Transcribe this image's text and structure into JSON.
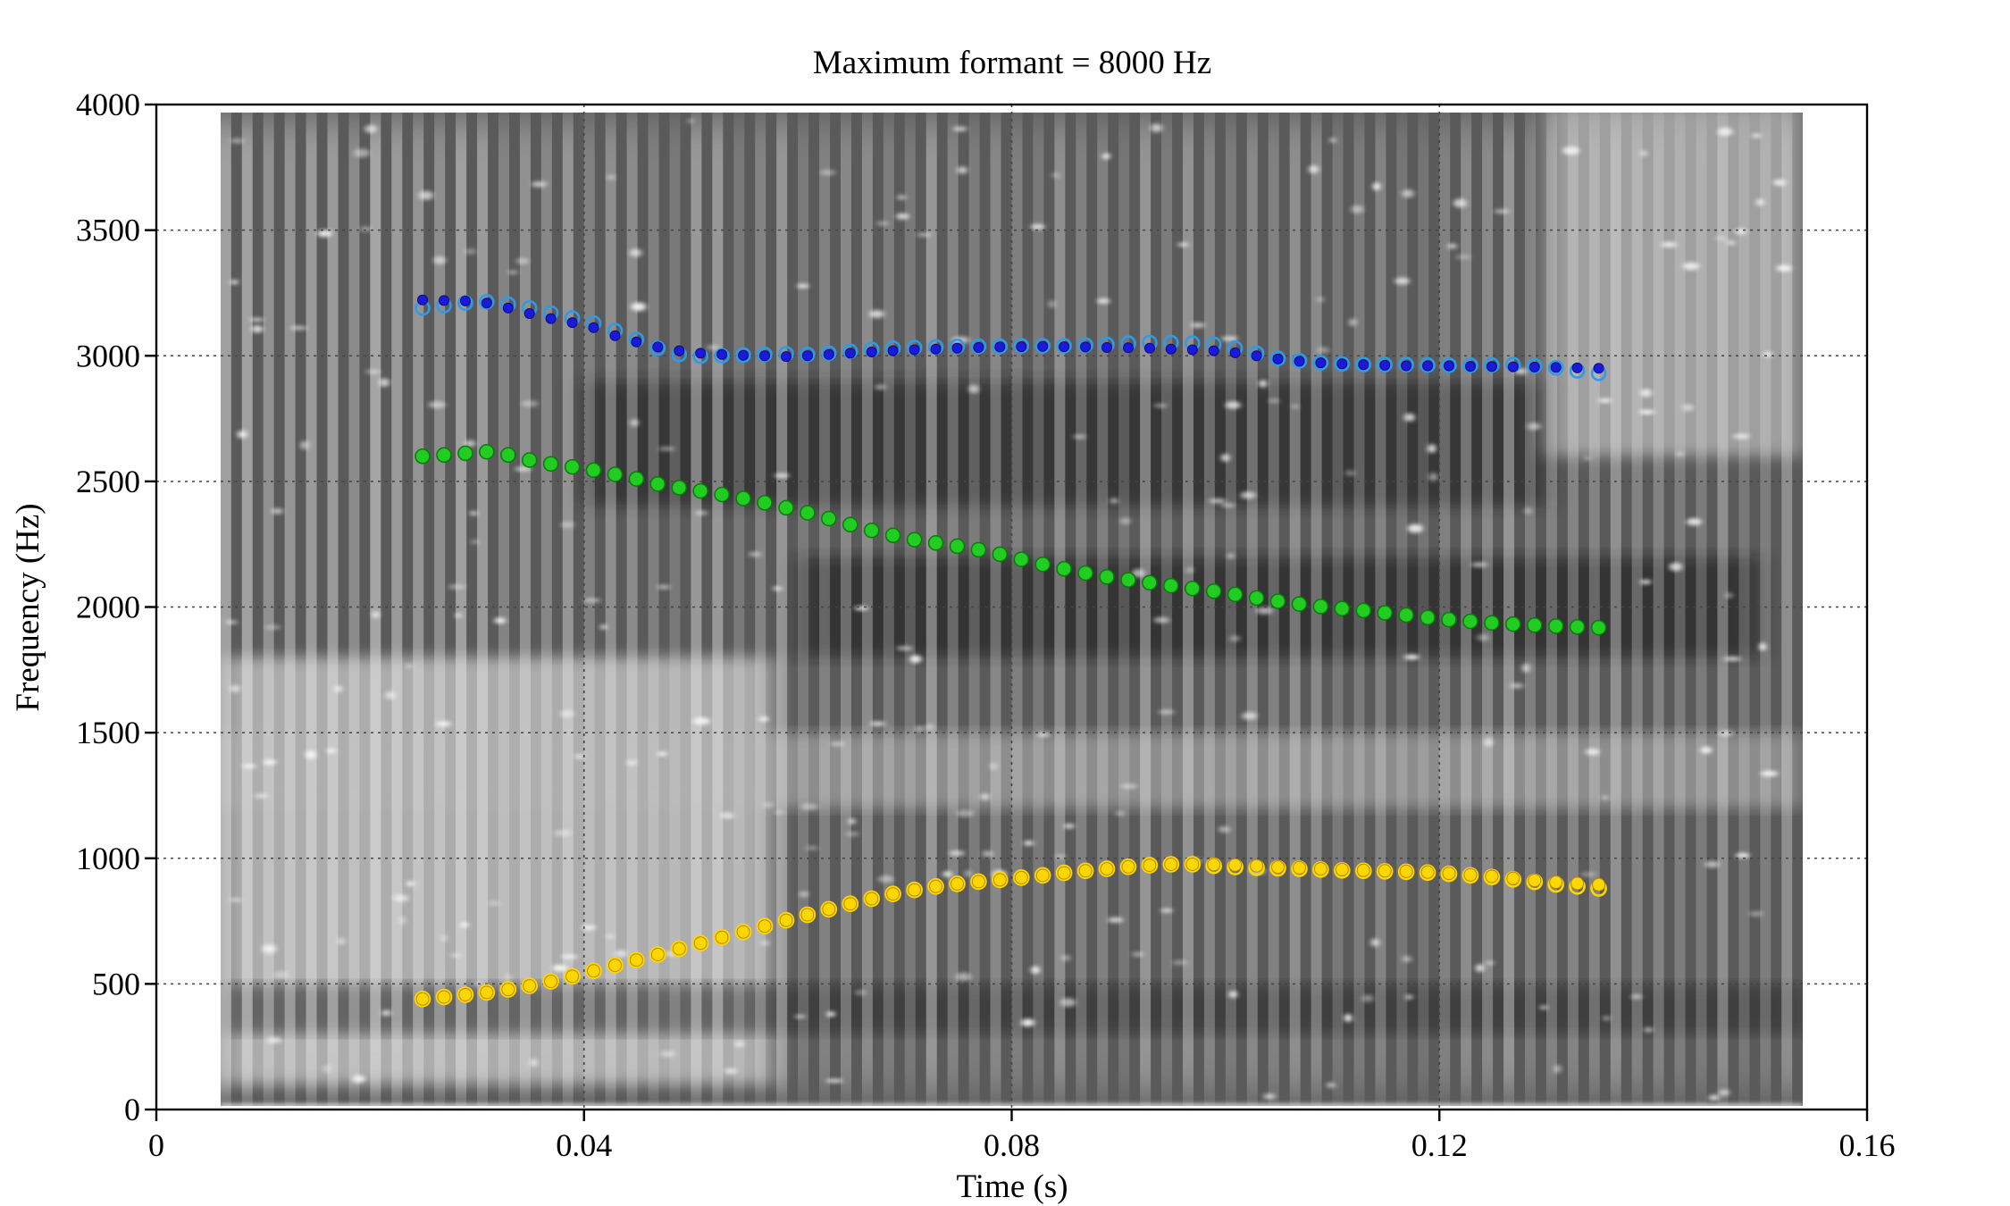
{
  "chart_data": {
    "type": "scatter",
    "title": "Maximum formant  =  8000 Hz",
    "xlabel": "Time (s)",
    "ylabel": "Frequency (Hz)",
    "xlim": [
      0,
      0.16
    ],
    "ylim": [
      0,
      4000
    ],
    "xticks": [
      0,
      0.04,
      0.08,
      0.12,
      0.16
    ],
    "xtick_labels": [
      "0",
      "0.04",
      "0.08",
      "0.12",
      "0.16"
    ],
    "yticks": [
      0,
      500,
      1000,
      1500,
      2000,
      2500,
      3000,
      3500,
      4000
    ],
    "ytick_labels": [
      "0",
      "500",
      "1000",
      "1500",
      "2000",
      "2500",
      "3000",
      "3500",
      "4000"
    ],
    "grid": "dotted at x = 0.04, 0.08, 0.12 and y = 500 … 3500",
    "background": "grayscale spectrogram, time 0.006–0.154 s, 0–4000 Hz",
    "colors": {
      "F1": "#ffd700",
      "F2": "#22cc22",
      "F3_fill": "#1a1adb",
      "F3_ring": "#2e9be6"
    },
    "x": [
      0.0249,
      0.0269,
      0.0289,
      0.0309,
      0.0329,
      0.0349,
      0.0369,
      0.0389,
      0.0409,
      0.0429,
      0.0449,
      0.0469,
      0.0489,
      0.0509,
      0.0529,
      0.0549,
      0.0569,
      0.0589,
      0.0609,
      0.0629,
      0.0649,
      0.0669,
      0.0689,
      0.0709,
      0.0729,
      0.0749,
      0.0769,
      0.0789,
      0.0809,
      0.0829,
      0.0849,
      0.0869,
      0.0889,
      0.0909,
      0.0929,
      0.0949,
      0.0969,
      0.0989,
      0.1009,
      0.1029,
      0.1049,
      0.1069,
      0.1089,
      0.1109,
      0.1129,
      0.1149,
      0.1169,
      0.1189,
      0.1209,
      0.1229,
      0.1249,
      0.1269,
      0.1289,
      0.1309,
      0.1329,
      0.1349
    ],
    "series": [
      {
        "marker": "filled",
        "values": [
          440,
          448,
          457,
          466,
          478,
          492,
          510,
          530,
          552,
          574,
          595,
          617,
          640,
          662,
          685,
          707,
          730,
          753,
          775,
          797,
          819,
          839,
          858,
          874,
          888,
          898,
          907,
          914,
          923,
          932,
          942,
          950,
          958,
          966,
          972,
          976,
          976,
          975,
          973,
          970,
          965,
          962,
          958,
          955,
          952,
          950,
          948,
          945,
          940,
          934,
          928,
          920,
          912,
          905,
          900,
          895
        ]
      },
      {
        "marker": "ring",
        "values": [
          440,
          448,
          457,
          466,
          478,
          492,
          510,
          530,
          552,
          574,
          595,
          617,
          640,
          662,
          685,
          707,
          730,
          753,
          775,
          797,
          819,
          839,
          858,
          874,
          888,
          898,
          907,
          914,
          923,
          932,
          942,
          950,
          958,
          966,
          972,
          976,
          976,
          970,
          965,
          962,
          960,
          958,
          955,
          952,
          950,
          948,
          946,
          943,
          938,
          932,
          925,
          916,
          906,
          896,
          888,
          880
        ]
      },
      {
        "marker": "filled",
        "values": [
          2600,
          2605,
          2612,
          2618,
          2605,
          2585,
          2570,
          2558,
          2545,
          2528,
          2510,
          2490,
          2475,
          2462,
          2448,
          2432,
          2415,
          2395,
          2375,
          2352,
          2328,
          2305,
          2285,
          2268,
          2255,
          2242,
          2228,
          2210,
          2190,
          2170,
          2152,
          2135,
          2120,
          2108,
          2097,
          2085,
          2074,
          2063,
          2050,
          2036,
          2023,
          2012,
          2002,
          1994,
          1986,
          1977,
          1968,
          1958,
          1950,
          1943,
          1937,
          1932,
          1928,
          1924,
          1921,
          1918
        ]
      },
      {
        "marker": "filled",
        "values": [
          3222,
          3220,
          3218,
          3210,
          3190,
          3168,
          3148,
          3132,
          3112,
          3080,
          3055,
          3035,
          3020,
          3010,
          3005,
          3002,
          3000,
          2997,
          3000,
          3005,
          3010,
          3015,
          3020,
          3024,
          3027,
          3030,
          3033,
          3035,
          3036,
          3037,
          3036,
          3035,
          3033,
          3032,
          3030,
          3027,
          3024,
          3020,
          3012,
          3000,
          2987,
          2978,
          2972,
          2968,
          2965,
          2962,
          2960,
          2960,
          2960,
          2958,
          2957,
          2956,
          2955,
          2954,
          2952,
          2950
        ]
      },
      {
        "marker": "ring",
        "values": [
          3190,
          3200,
          3210,
          3215,
          3205,
          3190,
          3170,
          3150,
          3130,
          3100,
          3065,
          3030,
          3005,
          2998,
          3000,
          3003,
          3005,
          3008,
          3005,
          3010,
          3018,
          3025,
          3030,
          3033,
          3035,
          3037,
          3038,
          3038,
          3040,
          3040,
          3040,
          3042,
          3045,
          3050,
          3052,
          3052,
          3050,
          3045,
          3030,
          3010,
          2990,
          2980,
          2972,
          2968,
          2965,
          2965,
          2965,
          2963,
          2962,
          2962,
          2963,
          2965,
          2960,
          2952,
          2940,
          2930
        ]
      }
    ]
  }
}
